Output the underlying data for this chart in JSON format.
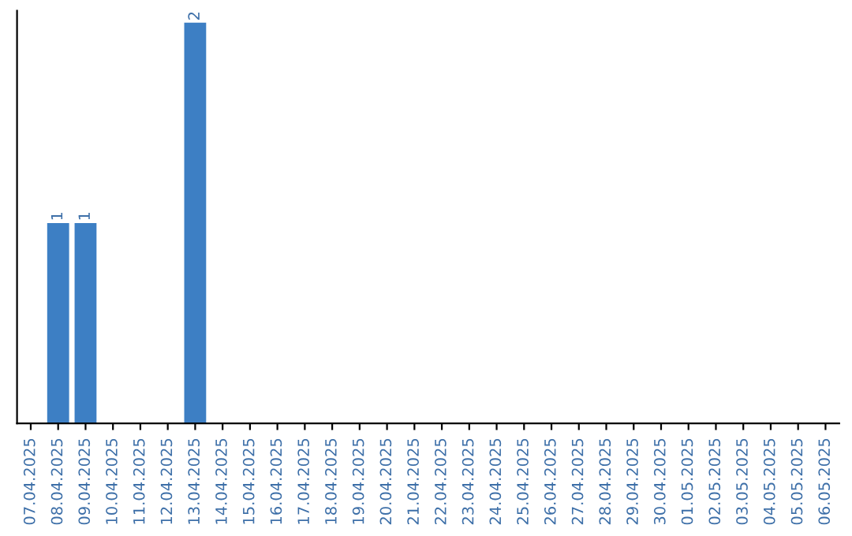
{
  "chart_data": {
    "type": "bar",
    "categories": [
      "07.04.2025",
      "08.04.2025",
      "09.04.2025",
      "10.04.2025",
      "11.04.2025",
      "12.04.2025",
      "13.04.2025",
      "14.04.2025",
      "15.04.2025",
      "16.04.2025",
      "17.04.2025",
      "18.04.2025",
      "19.04.2025",
      "20.04.2025",
      "21.04.2025",
      "22.04.2025",
      "23.04.2025",
      "24.04.2025",
      "25.04.2025",
      "26.04.2025",
      "27.04.2025",
      "28.04.2025",
      "29.04.2025",
      "30.04.2025",
      "01.05.2025",
      "02.05.2025",
      "03.05.2025",
      "04.05.2025",
      "05.05.2025",
      "06.05.2025"
    ],
    "values": [
      0,
      1,
      1,
      0,
      0,
      0,
      2,
      0,
      0,
      0,
      0,
      0,
      0,
      0,
      0,
      0,
      0,
      0,
      0,
      0,
      0,
      0,
      0,
      0,
      0,
      0,
      0,
      0,
      0,
      0
    ],
    "value_labels": [
      null,
      "1",
      "1",
      null,
      null,
      null,
      "2",
      null,
      null,
      null,
      null,
      null,
      null,
      null,
      null,
      null,
      null,
      null,
      null,
      null,
      null,
      null,
      null,
      null,
      null,
      null,
      null,
      null,
      null,
      null
    ],
    "color": "#3d7fc4",
    "tick_labels": "x",
    "grid": false,
    "legend": false
  }
}
